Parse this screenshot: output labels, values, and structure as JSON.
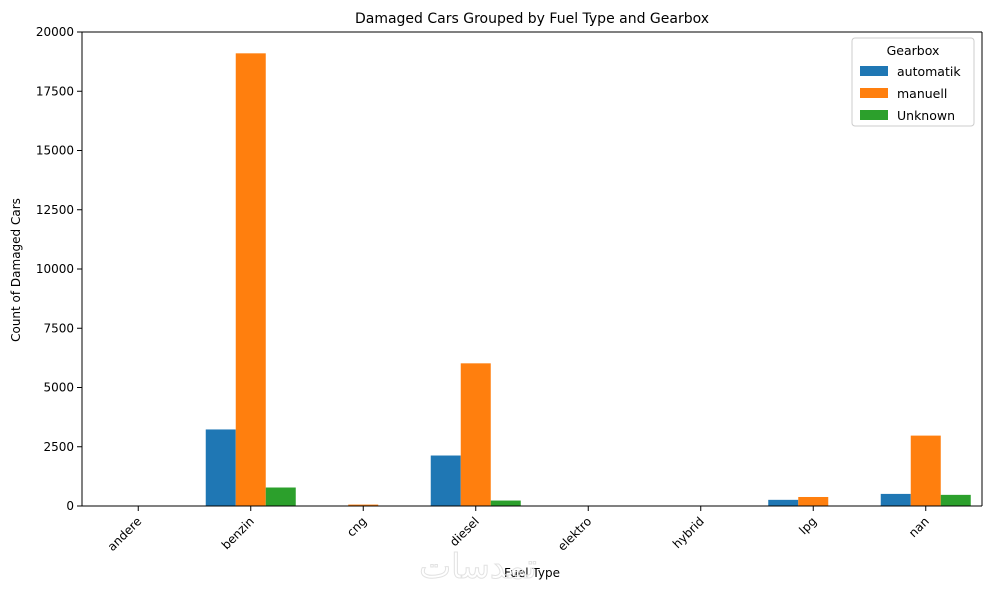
{
  "chart_data": {
    "type": "bar",
    "title": "Damaged Cars Grouped by Fuel Type and Gearbox",
    "xlabel": "Fuel Type",
    "ylabel": "Count of Damaged Cars",
    "ylim": [
      0,
      20000
    ],
    "yticks": [
      0,
      2500,
      5000,
      7500,
      10000,
      12500,
      15000,
      17500,
      20000
    ],
    "grid": false,
    "legend_title": "Gearbox",
    "legend_position": "top-right",
    "categories": [
      "andere",
      "benzin",
      "cng",
      "diesel",
      "elektro",
      "hybrid",
      "lpg",
      "nan"
    ],
    "series": [
      {
        "name": "automatik",
        "color": "#1f77b4",
        "values": [
          3,
          3230,
          5,
          2130,
          2,
          5,
          260,
          510
        ]
      },
      {
        "name": "manuell",
        "color": "#ff7f0e",
        "values": [
          12,
          19100,
          60,
          6020,
          8,
          4,
          380,
          2970
        ]
      },
      {
        "name": "Unknown",
        "color": "#2ca02c",
        "values": [
          2,
          780,
          6,
          230,
          1,
          1,
          18,
          470
        ]
      }
    ]
  },
  "watermark": "تمدسات"
}
